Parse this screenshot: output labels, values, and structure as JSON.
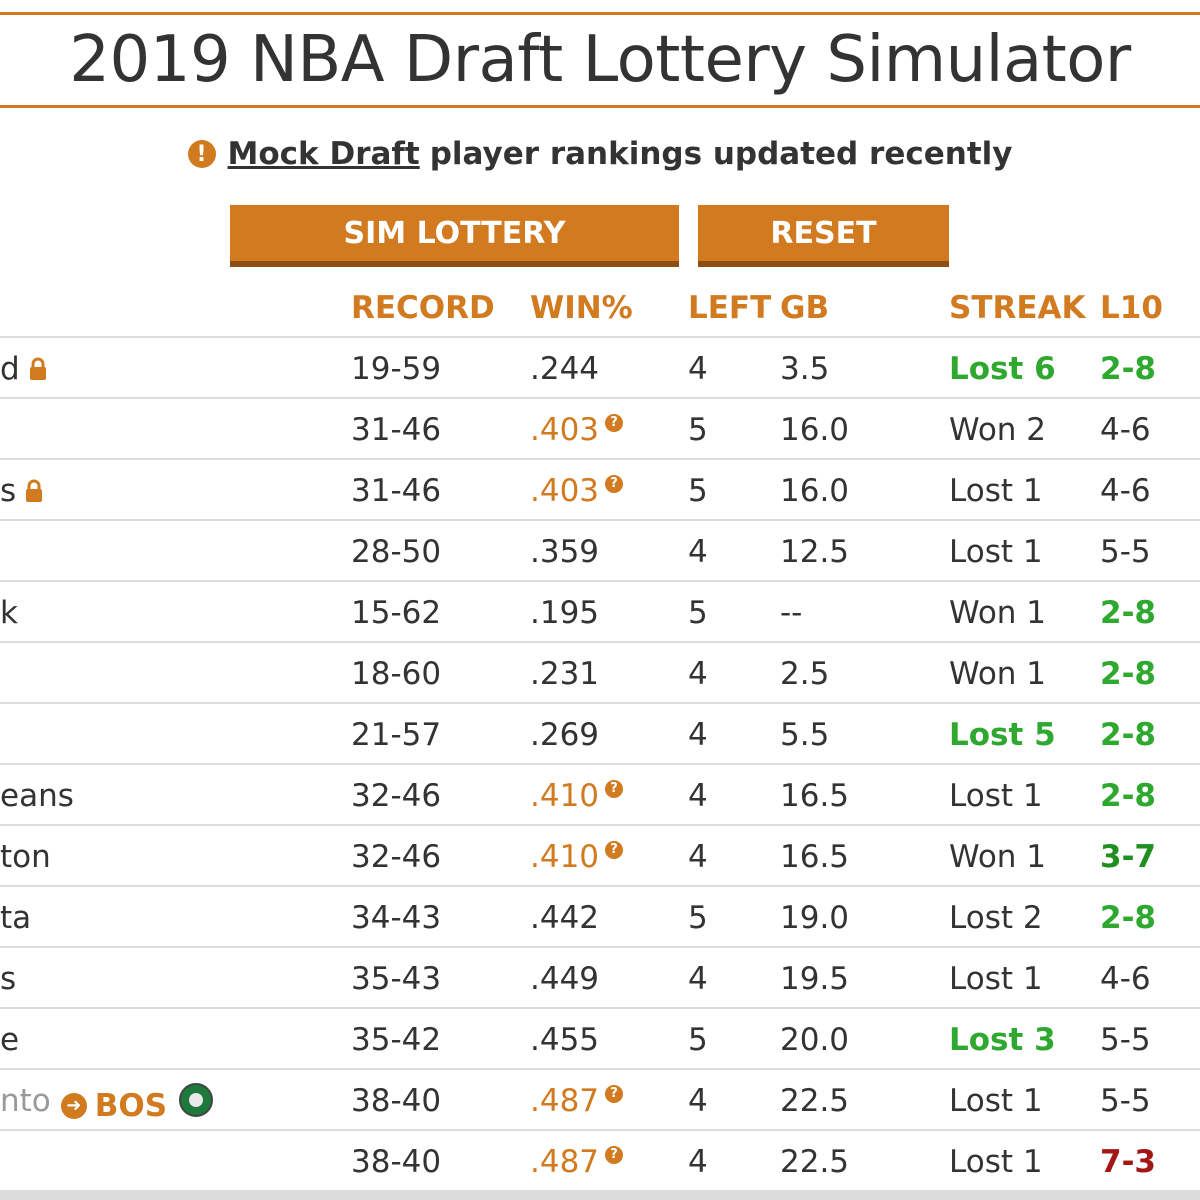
{
  "title": "2019 NBA Draft Lottery Simulator",
  "notice": {
    "link_text": "Mock Draft",
    "text": "player rankings updated recently",
    "icon": "exclamation-circle-icon"
  },
  "buttons": {
    "sim": "SIM LOTTERY",
    "reset": "RESET"
  },
  "columns": {
    "record": "RECORD",
    "win": "WIN%",
    "left": "LEFT",
    "gb": "GB",
    "streak": "STREAK",
    "l10": "L10"
  },
  "colors": {
    "accent": "#d17a1f",
    "green": "#2ea82e",
    "red": "#a31616"
  },
  "rows": [
    {
      "team": "d",
      "locked": true,
      "record": "19-59",
      "win": ".244",
      "tie": false,
      "left": "4",
      "gb": "3.5",
      "streak": "Lost 6",
      "streak_style": "green-bold",
      "l10": "2-8",
      "l10_style": "green-bold"
    },
    {
      "team": "",
      "locked": false,
      "record": "31-46",
      "win": ".403",
      "tie": true,
      "left": "5",
      "gb": "16.0",
      "streak": "Won 2",
      "streak_style": "",
      "l10": "4-6",
      "l10_style": ""
    },
    {
      "team": "s",
      "locked": true,
      "record": "31-46",
      "win": ".403",
      "tie": true,
      "left": "5",
      "gb": "16.0",
      "streak": "Lost 1",
      "streak_style": "",
      "l10": "4-6",
      "l10_style": ""
    },
    {
      "team": "",
      "locked": false,
      "record": "28-50",
      "win": ".359",
      "tie": false,
      "left": "4",
      "gb": "12.5",
      "streak": "Lost 1",
      "streak_style": "",
      "l10": "5-5",
      "l10_style": ""
    },
    {
      "team": "k",
      "locked": false,
      "record": "15-62",
      "win": ".195",
      "tie": false,
      "left": "5",
      "gb": "--",
      "streak": "Won 1",
      "streak_style": "",
      "l10": "2-8",
      "l10_style": "green-bold"
    },
    {
      "team": "",
      "locked": false,
      "record": "18-60",
      "win": ".231",
      "tie": false,
      "left": "4",
      "gb": "2.5",
      "streak": "Won 1",
      "streak_style": "",
      "l10": "2-8",
      "l10_style": "green-bold"
    },
    {
      "team": "",
      "locked": false,
      "record": "21-57",
      "win": ".269",
      "tie": false,
      "left": "4",
      "gb": "5.5",
      "streak": "Lost 5",
      "streak_style": "green-bold",
      "l10": "2-8",
      "l10_style": "green-bold"
    },
    {
      "team": "eans",
      "locked": false,
      "record": "32-46",
      "win": ".410",
      "tie": true,
      "left": "4",
      "gb": "16.5",
      "streak": "Lost 1",
      "streak_style": "",
      "l10": "2-8",
      "l10_style": "green-bold"
    },
    {
      "team": "ton",
      "locked": false,
      "record": "32-46",
      "win": ".410",
      "tie": true,
      "left": "4",
      "gb": "16.5",
      "streak": "Won 1",
      "streak_style": "",
      "l10": "3-7",
      "l10_style": "dark-green-bold"
    },
    {
      "team": "ta",
      "locked": false,
      "record": "34-43",
      "win": ".442",
      "tie": false,
      "left": "5",
      "gb": "19.0",
      "streak": "Lost 2",
      "streak_style": "",
      "l10": "2-8",
      "l10_style": "green-bold"
    },
    {
      "team": "s",
      "locked": false,
      "record": "35-43",
      "win": ".449",
      "tie": false,
      "left": "4",
      "gb": "19.5",
      "streak": "Lost 1",
      "streak_style": "",
      "l10": "4-6",
      "l10_style": ""
    },
    {
      "team": "e",
      "locked": false,
      "record": "35-42",
      "win": ".455",
      "tie": false,
      "left": "5",
      "gb": "20.0",
      "streak": "Lost 3",
      "streak_style": "green-bold",
      "l10": "5-5",
      "l10_style": ""
    },
    {
      "team": "nto",
      "locked": false,
      "traded_to": "BOS",
      "record": "38-40",
      "win": ".487",
      "tie": true,
      "left": "4",
      "gb": "22.5",
      "streak": "Lost 1",
      "streak_style": "",
      "l10": "5-5",
      "l10_style": ""
    },
    {
      "team": "",
      "locked": false,
      "record": "38-40",
      "win": ".487",
      "tie": true,
      "left": "4",
      "gb": "22.5",
      "streak": "Lost 1",
      "streak_style": "",
      "l10": "7-3",
      "l10_style": "red-bold"
    }
  ]
}
